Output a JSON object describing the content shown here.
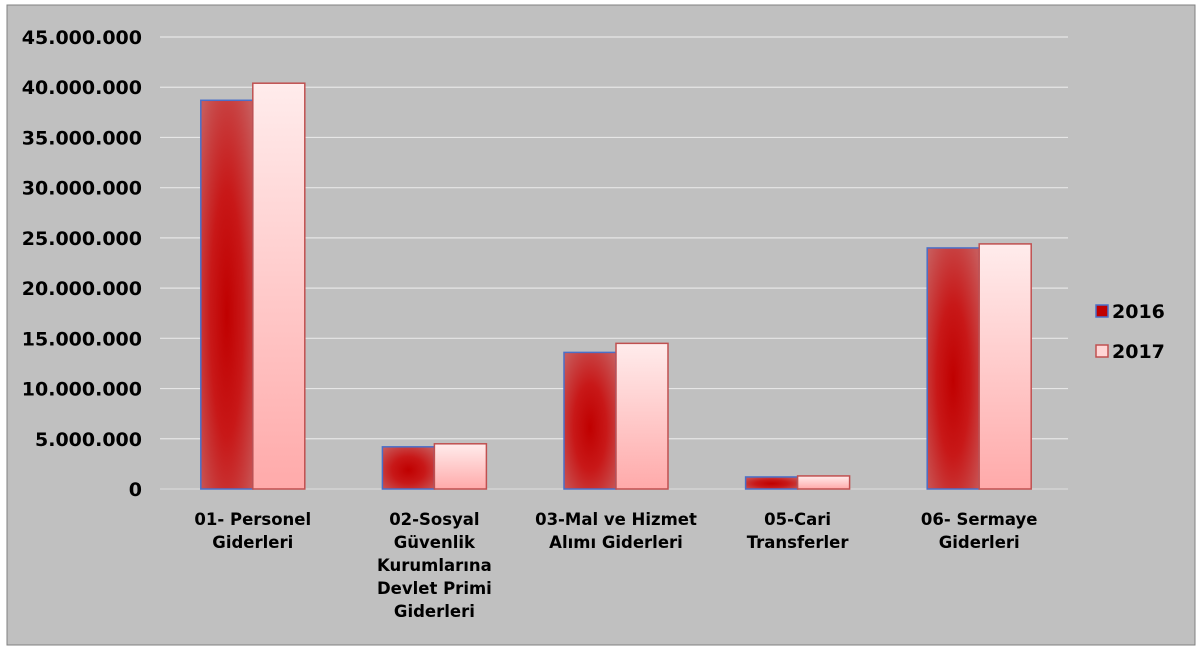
{
  "chart_data": {
    "type": "bar",
    "categories": [
      [
        "01- Personel",
        "Giderleri"
      ],
      [
        "02-Sosyal",
        "Güvenlik",
        "Kurumlarına",
        "Devlet Primi",
        "Giderleri"
      ],
      [
        "03-Mal ve Hizmet",
        "Alımı Giderleri"
      ],
      [
        "05-Cari",
        "Transferler"
      ],
      [
        "06- Sermaye",
        "Giderleri"
      ]
    ],
    "series": [
      {
        "name": "2016",
        "values": [
          38700000,
          4200000,
          13600000,
          1200000,
          24000000
        ]
      },
      {
        "name": "2017",
        "values": [
          40400000,
          4500000,
          14500000,
          1300000,
          24400000
        ]
      }
    ],
    "yticks": [
      "0",
      "5.000.000",
      "10.000.000",
      "15.000.000",
      "20.000.000",
      "25.000.000",
      "30.000.000",
      "35.000.000",
      "40.000.000",
      "45.000.000"
    ],
    "ylim": [
      0,
      45000000
    ],
    "grid": true,
    "legend_position": "right",
    "colors": {
      "background": "#c0c0c0",
      "series_2016": "#c00000",
      "series_2017": "#ffd6d6",
      "gridline": "#e6e6e6"
    }
  }
}
